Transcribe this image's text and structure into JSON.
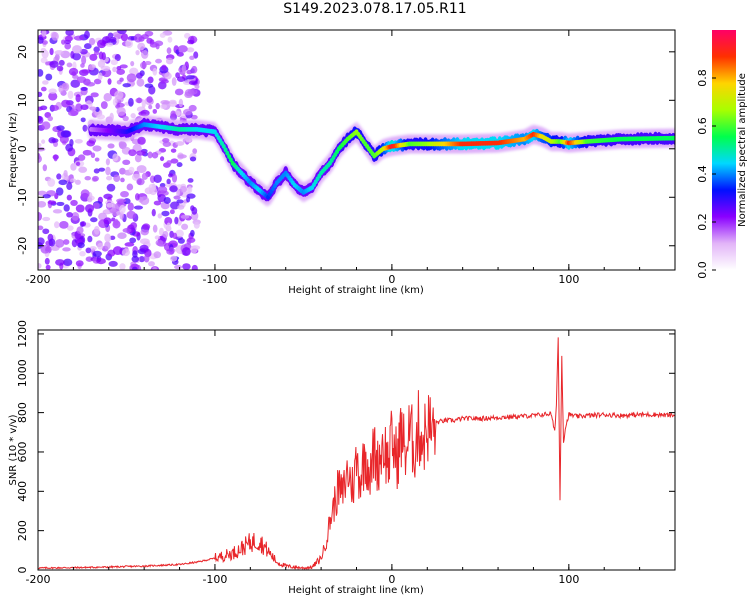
{
  "title": "S149.2023.078.17.05.R11",
  "chart_data": [
    {
      "type": "heatmap",
      "xlabel": "Height of straight line (km)",
      "ylabel": "Frequency (Hz)",
      "xlim": [
        -200,
        160
      ],
      "ylim": [
        -25,
        24.5
      ],
      "xticks": [
        -200,
        -100,
        0,
        100
      ],
      "yticks": [
        -20,
        -10,
        0,
        10,
        20
      ],
      "colorbar": {
        "label": "Normalized spectral amplitude",
        "range": [
          0,
          1
        ],
        "ticks": [
          "0.0",
          "0.2",
          "0.4",
          "0.6",
          "0.8"
        ],
        "tick_values": [
          0,
          0.2,
          0.4,
          0.6,
          0.8
        ],
        "colors": [
          "#ffffff",
          "#e2b4f8",
          "#8a00ff",
          "#0010ff",
          "#00d8ff",
          "#00ff4c",
          "#a8ff00",
          "#ffd400",
          "#ff3000",
          "#ff0066"
        ]
      },
      "ridge": {
        "x": [
          -170,
          -150,
          -140,
          -130,
          -120,
          -110,
          -100,
          -95,
          -90,
          -85,
          -80,
          -75,
          -70,
          -65,
          -60,
          -55,
          -50,
          -45,
          -40,
          -35,
          -30,
          -25,
          -20,
          -15,
          -10,
          -5,
          0,
          10,
          20,
          40,
          60,
          75,
          80,
          85,
          90,
          95,
          100,
          110,
          130,
          160
        ],
        "y": [
          4,
          3.5,
          5,
          4.5,
          4,
          4,
          3.5,
          0.5,
          -3,
          -5,
          -7,
          -8.5,
          -10,
          -7,
          -5,
          -7.5,
          -9,
          -8,
          -5,
          -3,
          0,
          2,
          3.5,
          1,
          -1.5,
          0,
          0.5,
          1,
          1,
          1,
          1.2,
          2,
          3,
          2.5,
          1.5,
          1.5,
          1.2,
          1.5,
          2,
          2.2
        ],
        "amplitude": [
          0.15,
          0.3,
          0.4,
          0.45,
          0.5,
          0.45,
          0.45,
          0.5,
          0.55,
          0.45,
          0.4,
          0.45,
          0.35,
          0.4,
          0.4,
          0.45,
          0.4,
          0.45,
          0.5,
          0.5,
          0.55,
          0.6,
          0.65,
          0.6,
          0.6,
          0.7,
          0.95,
          0.6,
          0.65,
          0.9,
          0.9,
          0.8,
          0.9,
          0.75,
          0.7,
          0.6,
          0.9,
          0.6,
          0.55,
          0.55
        ]
      }
    },
    {
      "type": "line",
      "color": "#e8262a",
      "xlabel": "Height of straight line (km)",
      "ylabel": "SNR (10 * v/v)",
      "xlim": [
        -200,
        160
      ],
      "ylim": [
        0,
        1220
      ],
      "xticks": [
        -200,
        -100,
        0,
        100
      ],
      "yticks": [
        0,
        200,
        400,
        600,
        800,
        1000,
        1200
      ],
      "series": [
        {
          "x": [
            -200,
            -180,
            -160,
            -140,
            -120,
            -110,
            -100,
            -90,
            -85,
            -80,
            -75,
            -70,
            -65,
            -60,
            -55,
            -50,
            -45,
            -40,
            -37,
            -35,
            -33,
            -30,
            -28,
            -25,
            -22,
            -20,
            -18,
            -15,
            -12,
            -10,
            -8,
            -5,
            -2,
            0,
            3,
            5,
            8,
            10,
            13,
            15,
            18,
            20,
            23,
            25,
            30,
            35,
            40,
            50,
            60,
            70,
            80,
            85,
            90,
            92,
            93,
            94,
            95,
            96,
            97,
            98,
            100,
            105,
            110,
            120,
            130,
            140,
            150,
            160
          ],
          "y": [
            10,
            12,
            15,
            20,
            28,
            40,
            60,
            85,
            110,
            140,
            150,
            95,
            40,
            20,
            15,
            10,
            15,
            60,
            150,
            250,
            320,
            420,
            380,
            500,
            420,
            560,
            460,
            590,
            480,
            620,
            530,
            650,
            540,
            660,
            560,
            690,
            600,
            700,
            620,
            720,
            660,
            740,
            700,
            750,
            760,
            760,
            770,
            770,
            775,
            780,
            785,
            790,
            795,
            700,
            850,
            1180,
            350,
            1100,
            650,
            720,
            790,
            780,
            785,
            790,
            785,
            790,
            790,
            785
          ]
        }
      ]
    }
  ]
}
